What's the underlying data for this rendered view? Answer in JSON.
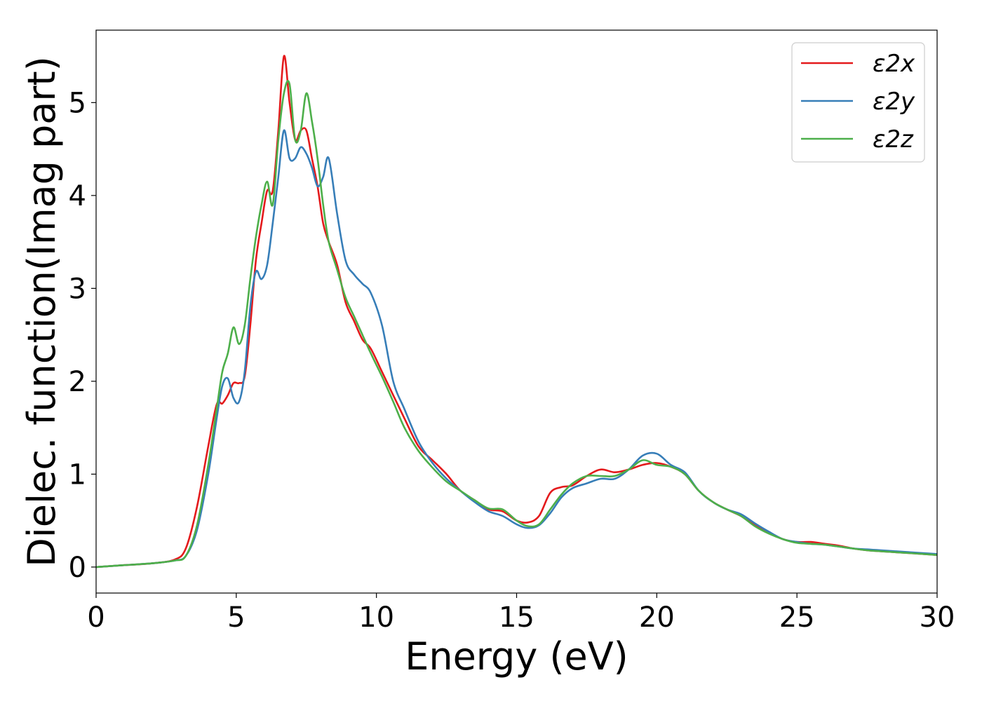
{
  "chart_data": {
    "type": "line",
    "title": "",
    "xlabel": "Energy (eV)",
    "ylabel": "Dielec. function(Imag part)",
    "xlim": [
      0,
      30
    ],
    "ylim": [
      -0.28,
      5.78
    ],
    "xticks": [
      0,
      5,
      10,
      15,
      20,
      25,
      30
    ],
    "yticks": [
      0,
      1,
      2,
      3,
      4,
      5
    ],
    "grid": false,
    "legend": "top-right",
    "series": [
      {
        "name": "ε2x",
        "color": "#e41a1c",
        "x": [
          0,
          1,
          2,
          2.8,
          3.2,
          3.6,
          4.0,
          4.3,
          4.5,
          4.7,
          4.9,
          5.1,
          5.3,
          5.5,
          5.7,
          5.9,
          6.1,
          6.3,
          6.5,
          6.7,
          6.9,
          7.1,
          7.3,
          7.5,
          7.7,
          7.9,
          8.1,
          8.3,
          8.6,
          8.9,
          9.2,
          9.5,
          9.8,
          10.2,
          10.6,
          11.0,
          11.5,
          12.0,
          12.5,
          13.0,
          13.5,
          14.0,
          14.5,
          15.0,
          15.4,
          15.8,
          16.2,
          16.6,
          17.0,
          17.5,
          18.0,
          18.5,
          19.0,
          19.5,
          20.0,
          20.5,
          21.0,
          21.5,
          22.0,
          22.5,
          23.0,
          23.5,
          24.0,
          24.5,
          25.0,
          25.5,
          26.0,
          26.5,
          27.0,
          27.5,
          28.0,
          28.5,
          29.0,
          29.5,
          30.0
        ],
        "y": [
          0.0,
          0.02,
          0.04,
          0.08,
          0.2,
          0.65,
          1.3,
          1.75,
          1.76,
          1.85,
          1.98,
          1.98,
          2.05,
          2.6,
          3.3,
          3.7,
          4.05,
          4.05,
          4.7,
          5.5,
          5.0,
          4.6,
          4.7,
          4.7,
          4.4,
          4.1,
          3.7,
          3.5,
          3.25,
          2.85,
          2.65,
          2.45,
          2.35,
          2.1,
          1.85,
          1.6,
          1.3,
          1.15,
          1.0,
          0.82,
          0.72,
          0.62,
          0.6,
          0.5,
          0.48,
          0.55,
          0.8,
          0.86,
          0.88,
          0.98,
          1.05,
          1.02,
          1.05,
          1.1,
          1.12,
          1.08,
          1.0,
          0.82,
          0.7,
          0.62,
          0.55,
          0.45,
          0.37,
          0.3,
          0.27,
          0.27,
          0.25,
          0.23,
          0.2,
          0.18,
          0.17,
          0.16,
          0.15,
          0.14,
          0.13
        ]
      },
      {
        "name": "ε2y",
        "color": "#377eb8",
        "x": [
          0,
          1,
          2,
          2.8,
          3.2,
          3.6,
          4.0,
          4.3,
          4.5,
          4.7,
          4.9,
          5.1,
          5.3,
          5.5,
          5.7,
          5.9,
          6.1,
          6.3,
          6.5,
          6.7,
          6.9,
          7.1,
          7.3,
          7.5,
          7.7,
          7.9,
          8.1,
          8.3,
          8.6,
          8.9,
          9.2,
          9.5,
          9.8,
          10.2,
          10.6,
          11.0,
          11.5,
          12.0,
          12.5,
          13.0,
          13.5,
          14.0,
          14.5,
          15.0,
          15.4,
          15.8,
          16.2,
          16.6,
          17.0,
          17.5,
          18.0,
          18.5,
          19.0,
          19.5,
          20.0,
          20.5,
          21.0,
          21.5,
          22.0,
          22.5,
          23.0,
          23.5,
          24.0,
          24.5,
          25.0,
          25.5,
          26.0,
          26.5,
          27.0,
          27.5,
          28.0,
          28.5,
          29.0,
          29.5,
          30.0
        ],
        "y": [
          0.0,
          0.02,
          0.04,
          0.07,
          0.12,
          0.4,
          1.0,
          1.6,
          1.95,
          2.03,
          1.82,
          1.78,
          2.1,
          2.8,
          3.18,
          3.1,
          3.25,
          3.7,
          4.2,
          4.7,
          4.4,
          4.4,
          4.52,
          4.45,
          4.3,
          4.1,
          4.2,
          4.4,
          3.8,
          3.3,
          3.15,
          3.05,
          2.95,
          2.6,
          2.0,
          1.7,
          1.35,
          1.12,
          0.95,
          0.82,
          0.7,
          0.6,
          0.55,
          0.46,
          0.42,
          0.45,
          0.58,
          0.75,
          0.85,
          0.9,
          0.95,
          0.95,
          1.05,
          1.2,
          1.22,
          1.1,
          1.02,
          0.82,
          0.7,
          0.62,
          0.57,
          0.47,
          0.38,
          0.3,
          0.27,
          0.25,
          0.24,
          0.22,
          0.2,
          0.19,
          0.18,
          0.17,
          0.16,
          0.15,
          0.14
        ]
      },
      {
        "name": "ε2z",
        "color": "#4daf4a",
        "x": [
          0,
          1,
          2,
          2.8,
          3.2,
          3.6,
          4.0,
          4.3,
          4.5,
          4.7,
          4.9,
          5.1,
          5.3,
          5.5,
          5.7,
          5.9,
          6.1,
          6.3,
          6.5,
          6.7,
          6.9,
          7.1,
          7.3,
          7.5,
          7.7,
          7.9,
          8.1,
          8.3,
          8.6,
          8.9,
          9.2,
          9.5,
          9.8,
          10.2,
          10.6,
          11.0,
          11.5,
          12.0,
          12.5,
          13.0,
          13.5,
          14.0,
          14.5,
          15.0,
          15.4,
          15.8,
          16.2,
          16.6,
          17.0,
          17.5,
          18.0,
          18.5,
          19.0,
          19.5,
          20.0,
          20.5,
          21.0,
          21.5,
          22.0,
          22.5,
          23.0,
          23.5,
          24.0,
          24.5,
          25.0,
          25.5,
          26.0,
          26.5,
          27.0,
          27.5,
          28.0,
          28.5,
          29.0,
          29.5,
          30.0
        ],
        "y": [
          0.0,
          0.02,
          0.04,
          0.07,
          0.12,
          0.45,
          1.1,
          1.7,
          2.1,
          2.3,
          2.58,
          2.4,
          2.6,
          3.1,
          3.55,
          3.9,
          4.15,
          3.9,
          4.6,
          5.1,
          5.2,
          4.6,
          4.7,
          5.1,
          4.8,
          4.4,
          3.9,
          3.5,
          3.2,
          2.9,
          2.7,
          2.5,
          2.3,
          2.05,
          1.78,
          1.5,
          1.25,
          1.07,
          0.92,
          0.82,
          0.72,
          0.63,
          0.62,
          0.5,
          0.44,
          0.46,
          0.62,
          0.78,
          0.9,
          0.98,
          0.98,
          0.98,
          1.05,
          1.15,
          1.1,
          1.08,
          1.0,
          0.82,
          0.7,
          0.62,
          0.55,
          0.44,
          0.36,
          0.3,
          0.26,
          0.25,
          0.24,
          0.22,
          0.2,
          0.18,
          0.17,
          0.16,
          0.15,
          0.14,
          0.13
        ]
      }
    ]
  }
}
